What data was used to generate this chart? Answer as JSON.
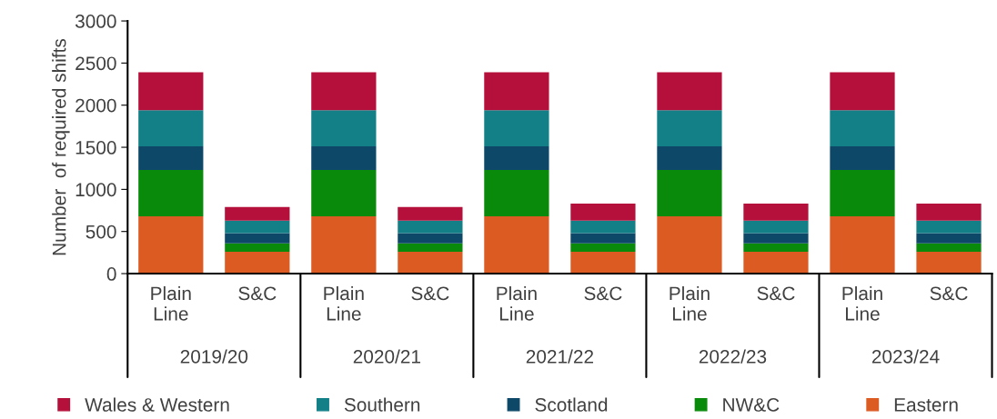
{
  "chart_data": {
    "type": "bar",
    "stacked": true,
    "ylabel": "Number  of required shifts",
    "categories": [
      "Plain\nLine",
      "S&C",
      "Plain\nLine",
      "S&C",
      "Plain\nLine",
      "S&C",
      "Plain\nLine",
      "S&C",
      "Plain\nLine",
      "S&C"
    ],
    "annotations": [
      "2019/20",
      "2020/21",
      "2021/22",
      "2022/23",
      "2023/24"
    ],
    "series": [
      {
        "name": "Eastern",
        "color": "#dc5b23",
        "values": [
          680,
          260,
          680,
          260,
          680,
          260,
          680,
          260,
          680,
          260
        ]
      },
      {
        "name": "NW&C",
        "color": "#098a0b",
        "values": [
          550,
          100,
          550,
          100,
          550,
          100,
          550,
          100,
          550,
          100
        ]
      },
      {
        "name": "Scotland",
        "color": "#0e4868",
        "values": [
          280,
          120,
          280,
          120,
          280,
          120,
          280,
          120,
          280,
          120
        ]
      },
      {
        "name": "Southern",
        "color": "#138088",
        "values": [
          430,
          150,
          430,
          150,
          430,
          150,
          430,
          150,
          430,
          150
        ]
      },
      {
        "name": "Wales & Western",
        "color": "#b5103b",
        "values": [
          450,
          160,
          450,
          160,
          450,
          200,
          450,
          200,
          450,
          200
        ]
      }
    ],
    "ylim": [
      0,
      3000
    ],
    "yticks": [
      0,
      500,
      1000,
      1500,
      2000,
      2500,
      3000
    ],
    "grid": false,
    "legend": "bottom"
  }
}
